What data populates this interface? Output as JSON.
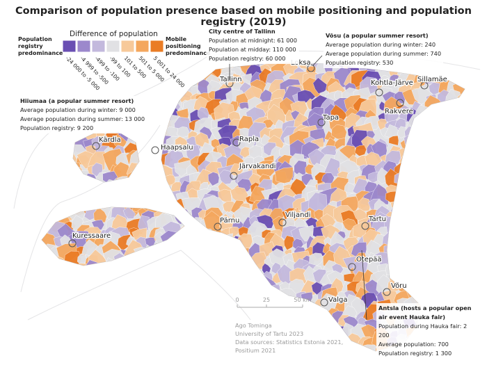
{
  "title": "Comparison of population presence based on mobile positioning and population registry (2019)",
  "legend": {
    "title": "Difference of population",
    "left_label": "Population registry predominance",
    "right_label": "Mobile positioning predominance",
    "classes": [
      {
        "label": "-24 000 to -5 000",
        "color": "#6a4fb3"
      },
      {
        "label": "-4 999 to -500",
        "color": "#9c88cc"
      },
      {
        "label": "-499 to -100",
        "color": "#c3b9dd"
      },
      {
        "label": "-99 to 100",
        "color": "#e1e1e4"
      },
      {
        "label": "101 to 500",
        "color": "#f7c99a"
      },
      {
        "label": "501 to 5 000",
        "color": "#f4a75e"
      },
      {
        "label": "5 001 to 24 000",
        "color": "#ea7c25"
      }
    ]
  },
  "places": [
    "Loksa",
    "Tallinn",
    "Kohtla-Järve",
    "Sillamäe",
    "Rakvere",
    "Tapa",
    "Kärdla",
    "Haapsalu",
    "Rapla",
    "Järvakandi",
    "Pärnu",
    "Viljandi",
    "Tartu",
    "Kuressaare",
    "Otepää",
    "Võru",
    "Valga"
  ],
  "callouts": {
    "tallinn": {
      "title": "City centre of Tallinn",
      "lines": [
        "Population at midnight: 61 000",
        "Population at midday: 110 000",
        "Population registry: 60 000"
      ]
    },
    "vosu": {
      "title": "Võsu (a popular summer resort)",
      "lines": [
        "Average population during winter: 240",
        "Average population during summer: 740",
        "Population registry:  530"
      ]
    },
    "hiiumaa": {
      "title": "Hiiumaa (a popular summer resort)",
      "lines": [
        "Average population during winter: 9 000",
        "Average population during summer: 13 000",
        "Population registry: 9 200"
      ]
    },
    "antsla": {
      "title": "Antsla  (hosts a popular open air event Hauka fair)",
      "lines": [
        "Population during Hauka fair: 2 200",
        "Average population: 700",
        "Population registry: 1 300"
      ]
    }
  },
  "scale": {
    "ticks": [
      "0",
      "25",
      "50 km"
    ]
  },
  "credits": [
    "Ago Tominga",
    "University of Tartu 2023",
    "Data sources: Statistics Estonia 2021,",
    "Positium 2021"
  ]
}
